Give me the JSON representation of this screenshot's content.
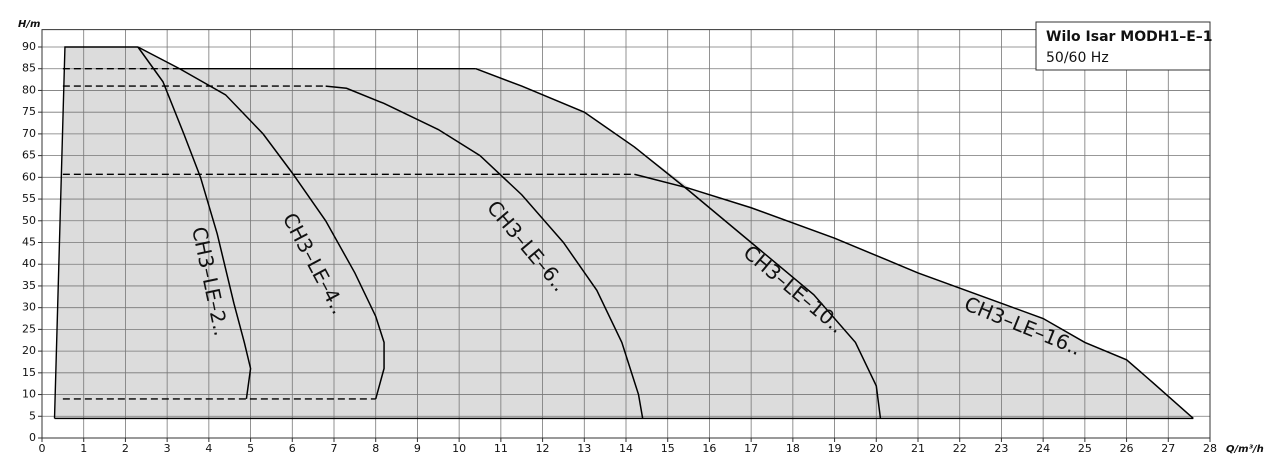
{
  "chart_data": {
    "type": "line",
    "title": "Wilo Isar MODH1–E–1",
    "subtitle": "50/60 Hz",
    "xlabel": "Q/m³/h",
    "ylabel": "H/m",
    "xlim": [
      0,
      28
    ],
    "ylim": [
      0,
      94
    ],
    "xticks": [
      0,
      1,
      2,
      3,
      4,
      5,
      6,
      7,
      8,
      9,
      10,
      11,
      12,
      13,
      14,
      15,
      16,
      17,
      18,
      19,
      20,
      21,
      22,
      23,
      24,
      25,
      26,
      27,
      28
    ],
    "yticks": [
      0,
      5,
      10,
      15,
      20,
      25,
      30,
      35,
      40,
      45,
      50,
      55,
      60,
      65,
      70,
      75,
      80,
      85,
      90
    ],
    "grid": true,
    "envelope": {
      "color": "#dcdcdc",
      "x": [
        0.3,
        0.55,
        2.3,
        3.3,
        10.4,
        11.5,
        13,
        14.2,
        15.6,
        17,
        19,
        21,
        23,
        24,
        25,
        26,
        26.6,
        27.6,
        0.3
      ],
      "values": [
        4.5,
        90,
        90,
        85,
        85,
        81,
        75,
        67,
        57,
        53,
        46,
        38,
        31,
        27.5,
        22,
        18,
        13,
        4.5,
        4.5
      ]
    },
    "series": [
      {
        "name": "CH3–LE–2..",
        "color": "#000000",
        "x": [
          2.3,
          2.9,
          3.4,
          3.8,
          4.2,
          4.6,
          4.85,
          5.0,
          4.9
        ],
        "values": [
          90,
          82,
          70,
          60,
          47,
          31,
          22,
          16,
          9
        ]
      },
      {
        "name": "CH3–LE–4..",
        "color": "#000000",
        "x": [
          2.3,
          3.3,
          4.4,
          5.3,
          6.0,
          6.8,
          7.5,
          8.0,
          8.2,
          8.2,
          8.0
        ],
        "values": [
          90,
          85,
          79,
          70,
          61,
          50,
          38,
          28,
          22,
          16,
          9
        ]
      },
      {
        "name": "CH3–LE–6..",
        "color": "#000000",
        "x": [
          6.8,
          7.3,
          8.2,
          9.5,
          10.5,
          11.5,
          12.5,
          13.3,
          13.9,
          14.3,
          14.4
        ],
        "values": [
          81,
          80.5,
          77,
          71,
          65,
          56,
          45,
          34,
          22,
          10,
          4.5
        ]
      },
      {
        "name": "CH3–LE–10..",
        "color": "#000000",
        "x": [
          10.4,
          11.5,
          13,
          14.2,
          15.5,
          17,
          18.5,
          19.5,
          20,
          20.1
        ],
        "values": [
          85,
          81,
          75,
          67,
          57,
          45,
          33,
          22,
          12,
          4.5
        ]
      },
      {
        "name": "CH3–LE–16..",
        "color": "#000000",
        "x": [
          14.2,
          15.5,
          17,
          19,
          21,
          23,
          24,
          25,
          26,
          26.6,
          27.6
        ],
        "values": [
          60.7,
          57.5,
          53,
          46,
          38,
          31,
          27.5,
          22,
          18,
          13,
          4.5
        ]
      }
    ],
    "reference_lines": [
      {
        "dashed": true,
        "x": [
          0.5,
          3.3
        ],
        "values": [
          85,
          85
        ]
      },
      {
        "dashed": true,
        "x": [
          0.5,
          6.8
        ],
        "values": [
          81,
          81
        ]
      },
      {
        "dashed": true,
        "x": [
          0.5,
          14.2
        ],
        "values": [
          60.7,
          60.7
        ]
      },
      {
        "dashed": true,
        "x": [
          0.5,
          8.0
        ],
        "values": [
          9,
          9
        ]
      },
      {
        "dashed": false,
        "x": [
          0.3,
          27.6
        ],
        "values": [
          4.5,
          4.5
        ]
      },
      {
        "dashed": false,
        "x": [
          0.3,
          0.55,
          2.3
        ],
        "values": [
          4.5,
          90,
          90
        ]
      },
      {
        "dashed": false,
        "x": [
          3.3,
          10.4
        ],
        "values": [
          85,
          85
        ]
      }
    ]
  }
}
